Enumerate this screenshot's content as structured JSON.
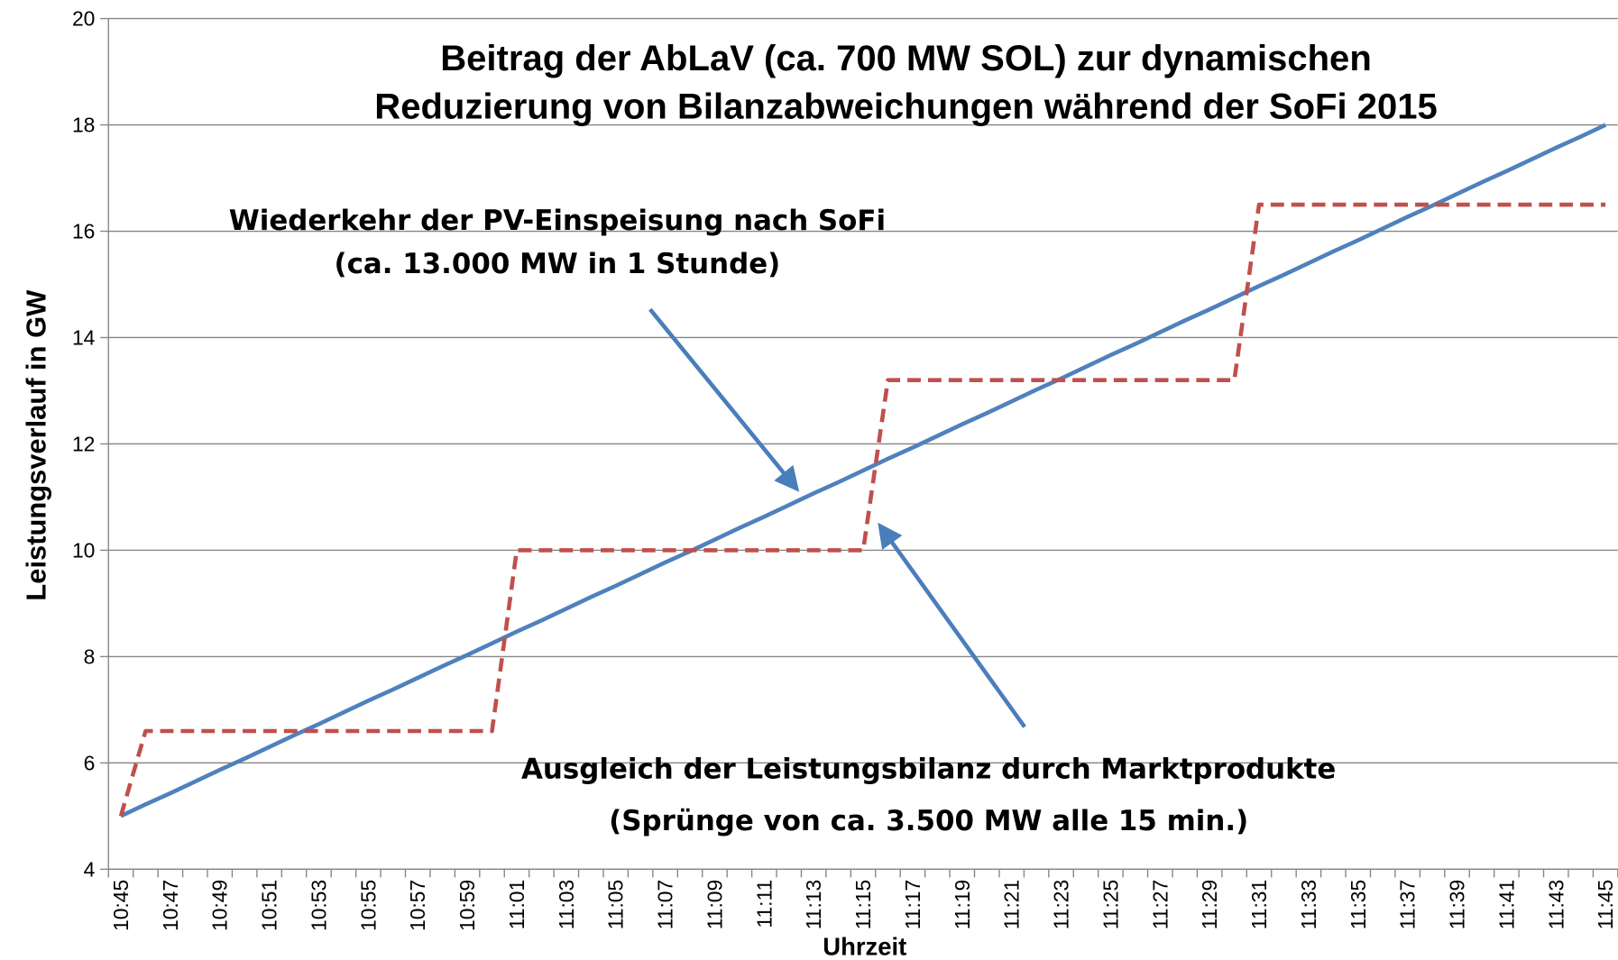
{
  "chart_data": {
    "type": "line",
    "title": [
      "Beitrag der AbLaV (ca. 700 MW SOL) zur dynamischen",
      "Reduzierung von Bilanzabweichungen während der SoFi 2015"
    ],
    "y_label": "Leistungsverlauf in GW",
    "x_label": "Uhrzeit",
    "annotations": [
      [
        "Wiederkehr der PV-Einspeisung nach SoFi",
        "(ca. 13.000 MW in 1 Stunde)"
      ],
      [
        "Ausgleich der Leistungsbilanz durch Marktprodukte",
        "(Sprünge von ca. 3.500 MW alle 15 min.)"
      ]
    ],
    "categories": [
      "10:45",
      null,
      "10:47",
      null,
      "10:49",
      null,
      "10:51",
      null,
      "10:53",
      null,
      "10:55",
      null,
      "10:57",
      null,
      "10:59",
      null,
      "11:01",
      null,
      "11:03",
      null,
      "11:05",
      null,
      "11:07",
      null,
      "11:09",
      null,
      "11:11",
      null,
      "11:13",
      null,
      "11:15",
      null,
      "11:17",
      null,
      "11:19",
      null,
      "11:21",
      null,
      "11:23",
      null,
      "11:25",
      null,
      "11:27",
      null,
      "11:29",
      null,
      "11:31",
      null,
      "11:33",
      null,
      "11:35",
      null,
      "11:37",
      null,
      "11:39",
      null,
      "11:41",
      null,
      "11:43",
      null,
      "11:45"
    ],
    "series": [
      {
        "color": "#4f81bd",
        "dashed": false,
        "values": [
          5,
          5.22,
          5.43,
          5.65,
          5.87,
          6.08,
          6.3,
          6.52,
          6.73,
          6.95,
          7.17,
          7.38,
          7.6,
          7.82,
          8.03,
          8.25,
          8.47,
          8.68,
          8.9,
          9.12,
          9.33,
          9.55,
          9.77,
          9.98,
          10.2,
          10.42,
          10.63,
          10.85,
          11.07,
          11.28,
          11.5,
          11.72,
          11.93,
          12.15,
          12.37,
          12.58,
          12.8,
          13.02,
          13.23,
          13.45,
          13.67,
          13.88,
          14.1,
          14.32,
          14.53,
          14.75,
          14.97,
          15.18,
          15.4,
          15.62,
          15.83,
          16.05,
          16.27,
          16.48,
          16.7,
          16.92,
          17.13,
          17.35,
          17.57,
          17.78,
          18
        ]
      },
      {
        "color": "#c0504d",
        "dashed": true,
        "values": [
          5,
          6.6,
          6.6,
          6.6,
          6.6,
          6.6,
          6.6,
          6.6,
          6.6,
          6.6,
          6.6,
          6.6,
          6.6,
          6.6,
          6.6,
          6.6,
          10,
          10,
          10,
          10,
          10,
          10,
          10,
          10,
          10,
          10,
          10,
          10,
          10,
          10,
          10,
          13.2,
          13.2,
          13.2,
          13.2,
          13.2,
          13.2,
          13.2,
          13.2,
          13.2,
          13.2,
          13.2,
          13.2,
          13.2,
          13.2,
          13.2,
          16.5,
          16.5,
          16.5,
          16.5,
          16.5,
          16.5,
          16.5,
          16.5,
          16.5,
          16.5,
          16.5,
          16.5,
          16.5,
          16.5,
          16.5
        ]
      }
    ],
    "ylim": [
      4,
      20
    ],
    "yticks": [
      4,
      6,
      8,
      10,
      12,
      14,
      16,
      18,
      20
    ],
    "grid": true
  }
}
